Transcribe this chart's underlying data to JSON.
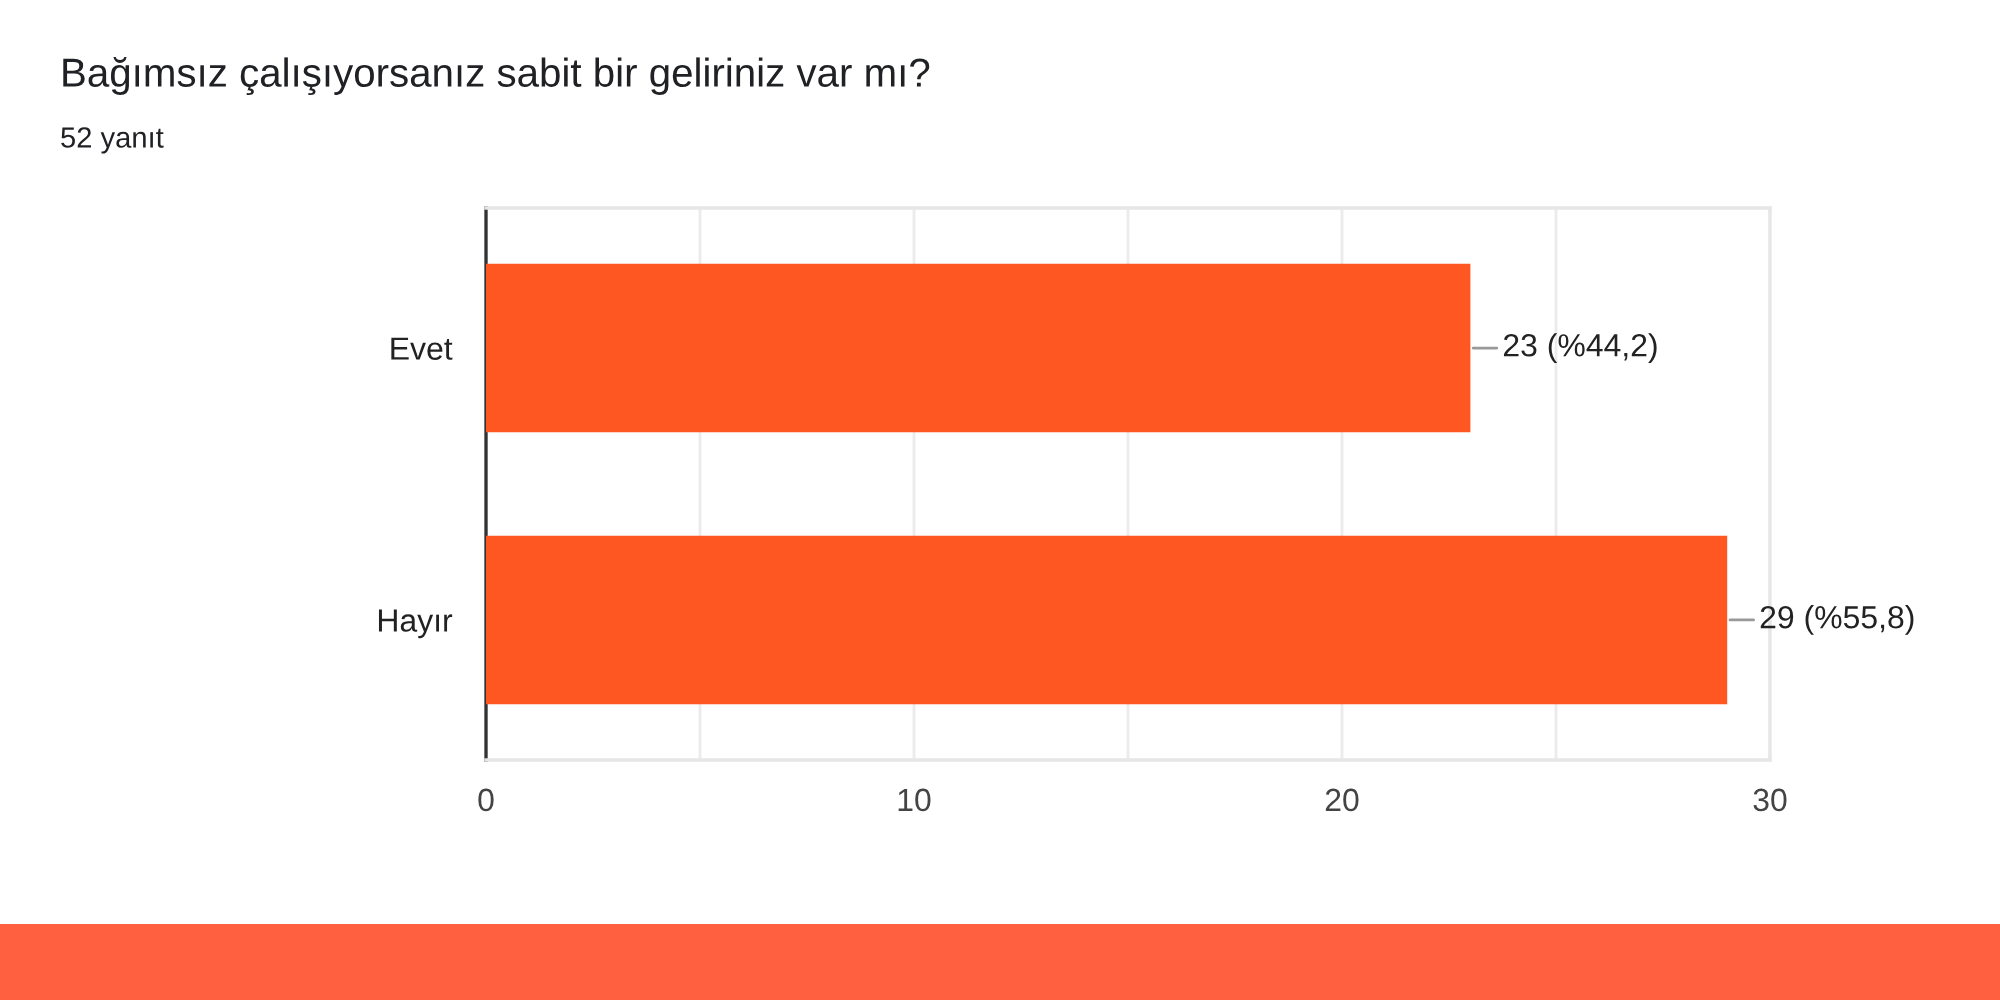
{
  "chart_data": {
    "type": "bar",
    "orientation": "horizontal",
    "title": "Bağımsız çalışıyorsanız sabit bir geliriniz var mı?",
    "subtitle": "52 yanıt",
    "categories": [
      "Evet",
      "Hayır"
    ],
    "values": [
      23,
      29
    ],
    "color": "#ff5722",
    "value_labels": [
      "23 (%44,2)",
      "29 (%55,8)"
    ],
    "xlim": [
      0,
      30
    ],
    "xticks": [
      0,
      {
        "value": 5,
        "label": null
      },
      10,
      {
        "value": 15,
        "label": null
      },
      20,
      {
        "value": 25,
        "label": null
      },
      30
    ],
    "grid": "x"
  }
}
